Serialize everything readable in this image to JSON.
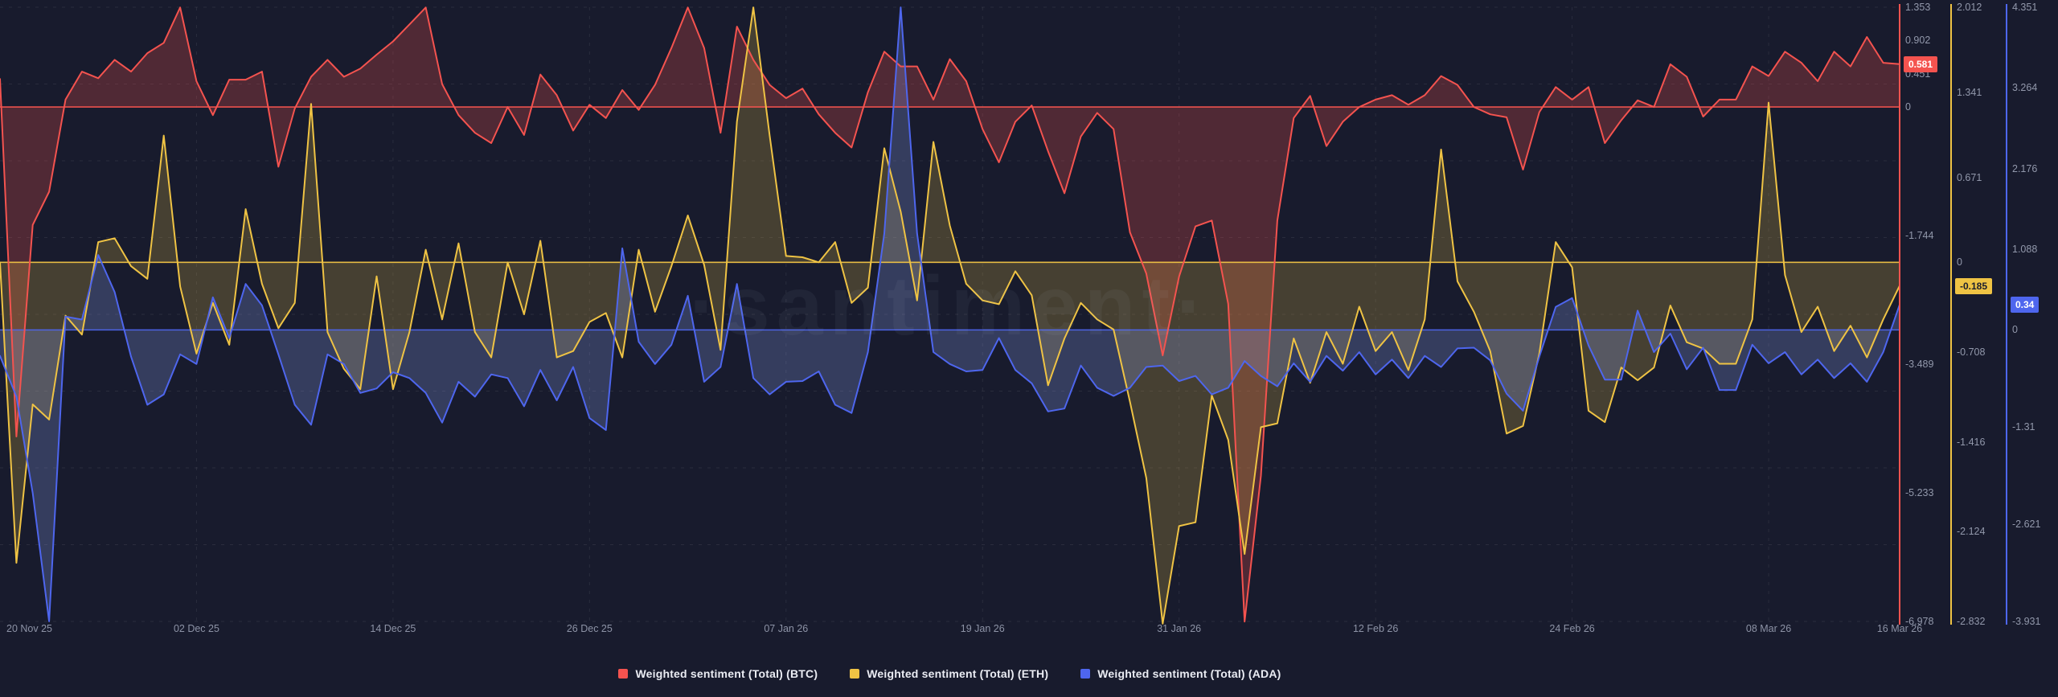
{
  "watermark": {
    "text": "·santiment·"
  },
  "colors": {
    "background": "#181b2d",
    "grid": "rgba(255,255,255,0.08)",
    "axis_text": "#9298ab",
    "date_text": "#8d93a6",
    "legend_text": "#eaecf3"
  },
  "chart_data": {
    "type": "area",
    "title": "",
    "grid": true,
    "legend_position": "bottom-center",
    "n_points": 117,
    "x_range": [
      "20 Nov 25",
      "16 Mar 26"
    ],
    "x_tick_labels": [
      "20 Nov 25",
      "02 Dec 25",
      "14 Dec 25",
      "26 Dec 25",
      "07 Jan 26",
      "19 Jan 26",
      "31 Jan 26",
      "12 Feb 26",
      "24 Feb 26",
      "08 Mar 26",
      "16 Mar 26"
    ],
    "x_tick_days": [
      0,
      12,
      24,
      36,
      48,
      60,
      72,
      84,
      96,
      108,
      116
    ],
    "series": [
      {
        "id": "btc",
        "name": "Weighted sentiment (Total) (BTC)",
        "color": "#f4534f",
        "fill": "rgba(244,83,79,0.26)",
        "label_text_color": "#ffffff",
        "axis_range": [
          -6.978,
          1.353
        ],
        "axis_ticks": [
          "1.353",
          "0.902",
          "0.451",
          "0",
          "-1.744",
          "-3.489",
          "-5.233",
          "-6.978"
        ],
        "current": 0.581,
        "current_label": "0.581",
        "values": [
          0.38,
          -4.47,
          -1.6,
          -1.15,
          0.1,
          0.48,
          0.39,
          0.64,
          0.48,
          0.73,
          0.87,
          1.35,
          0.35,
          -0.11,
          0.37,
          0.37,
          0.48,
          -0.81,
          -0.02,
          0.41,
          0.64,
          0.41,
          0.52,
          0.71,
          0.89,
          1.12,
          1.35,
          0.31,
          -0.11,
          -0.35,
          -0.49,
          0.0,
          -0.38,
          0.44,
          0.16,
          -0.32,
          0.03,
          -0.15,
          0.23,
          -0.04,
          0.3,
          0.8,
          1.35,
          0.8,
          -0.35,
          1.09,
          0.64,
          0.3,
          0.12,
          0.25,
          -0.1,
          -0.35,
          -0.55,
          0.2,
          0.75,
          0.55,
          0.55,
          0.1,
          0.65,
          0.35,
          -0.3,
          -0.75,
          -0.2,
          0.02,
          -0.6,
          -1.17,
          -0.4,
          -0.08,
          -0.3,
          -1.7,
          -2.26,
          -3.37,
          -2.3,
          -1.62,
          -1.54,
          -2.67,
          -6.98,
          -5.0,
          -1.54,
          -0.15,
          0.15,
          -0.53,
          -0.2,
          0.0,
          0.1,
          0.16,
          0.03,
          0.16,
          0.42,
          0.3,
          0.0,
          -0.1,
          -0.14,
          -0.85,
          -0.07,
          0.27,
          0.1,
          0.27,
          -0.49,
          -0.18,
          0.09,
          0.0,
          0.58,
          0.41,
          -0.13,
          0.1,
          0.1,
          0.55,
          0.42,
          0.75,
          0.6,
          0.35,
          0.75,
          0.55,
          0.95,
          0.6,
          0.581
        ]
      },
      {
        "id": "eth",
        "name": "Weighted sentiment (Total) (ETH)",
        "color": "#efc344",
        "fill": "rgba(239,195,68,0.22)",
        "label_text_color": "#1b1e2e",
        "axis_range": [
          -2.832,
          2.012
        ],
        "axis_ticks": [
          "2.012",
          "1.341",
          "0.671",
          "0",
          "-0.708",
          "-1.416",
          "-2.124",
          "-2.832"
        ],
        "current": -0.185,
        "current_label": "-0.185",
        "values": [
          0.0,
          -2.37,
          -1.12,
          -1.24,
          -0.42,
          -0.57,
          0.16,
          0.19,
          -0.03,
          -0.13,
          1.0,
          -0.19,
          -0.72,
          -0.32,
          -0.65,
          0.42,
          -0.17,
          -0.52,
          -0.32,
          1.25,
          -0.55,
          -0.84,
          -1.0,
          -0.11,
          -1.0,
          -0.55,
          0.1,
          -0.45,
          0.15,
          -0.55,
          -0.75,
          0.0,
          -0.41,
          0.17,
          -0.75,
          -0.7,
          -0.47,
          -0.4,
          -0.75,
          0.1,
          -0.39,
          -0.03,
          0.37,
          -0.02,
          -0.69,
          1.11,
          2.01,
          1.0,
          0.05,
          0.04,
          0.0,
          0.16,
          -0.32,
          -0.2,
          0.9,
          0.4,
          -0.3,
          0.95,
          0.29,
          -0.17,
          -0.3,
          -0.33,
          -0.07,
          -0.26,
          -0.97,
          -0.6,
          -0.32,
          -0.45,
          -0.53,
          -1.1,
          -1.7,
          -2.85,
          -2.08,
          -2.05,
          -1.05,
          -1.4,
          -2.3,
          -1.3,
          -1.27,
          -0.6,
          -0.95,
          -0.55,
          -0.8,
          -0.35,
          -0.7,
          -0.55,
          -0.85,
          -0.45,
          0.89,
          -0.15,
          -0.39,
          -0.7,
          -1.35,
          -1.29,
          -0.72,
          0.16,
          -0.04,
          -1.17,
          -1.26,
          -0.83,
          -0.93,
          -0.83,
          -0.34,
          -0.63,
          -0.68,
          -0.8,
          -0.8,
          -0.45,
          1.26,
          -0.1,
          -0.55,
          -0.35,
          -0.7,
          -0.5,
          -0.75,
          -0.45,
          -0.185
        ]
      },
      {
        "id": "ada",
        "name": "Weighted sentiment (Total) (ADA)",
        "color": "#4e66ee",
        "fill": "rgba(140,158,235,0.26)",
        "label_text_color": "#ffffff",
        "axis_range": [
          -3.931,
          4.351
        ],
        "axis_ticks": [
          "4.351",
          "3.264",
          "2.176",
          "1.088",
          "0",
          "-1.31",
          "-2.621",
          "-3.931"
        ],
        "current": 0.34,
        "current_label": "0.34",
        "values": [
          -0.35,
          -0.9,
          -2.2,
          -3.93,
          0.18,
          0.14,
          1.01,
          0.51,
          -0.36,
          -1.01,
          -0.87,
          -0.33,
          -0.46,
          0.44,
          -0.11,
          0.62,
          0.33,
          -0.33,
          -1.01,
          -1.28,
          -0.33,
          -0.46,
          -0.85,
          -0.79,
          -0.57,
          -0.65,
          -0.85,
          -1.25,
          -0.7,
          -0.9,
          -0.6,
          -0.65,
          -1.03,
          -0.54,
          -0.95,
          -0.5,
          -1.19,
          -1.35,
          1.1,
          -0.16,
          -0.46,
          -0.2,
          0.46,
          -0.7,
          -0.5,
          0.62,
          -0.65,
          -0.87,
          -0.7,
          -0.69,
          -0.56,
          -1.01,
          -1.12,
          -0.3,
          1.3,
          4.35,
          1.3,
          -0.3,
          -0.46,
          -0.56,
          -0.54,
          -0.11,
          -0.54,
          -0.72,
          -1.1,
          -1.06,
          -0.48,
          -0.78,
          -0.89,
          -0.78,
          -0.5,
          -0.48,
          -0.69,
          -0.62,
          -0.87,
          -0.78,
          -0.42,
          -0.62,
          -0.76,
          -0.45,
          -0.7,
          -0.35,
          -0.55,
          -0.3,
          -0.6,
          -0.4,
          -0.65,
          -0.35,
          -0.5,
          -0.25,
          -0.24,
          -0.41,
          -0.86,
          -1.09,
          -0.36,
          0.31,
          0.43,
          -0.21,
          -0.67,
          -0.67,
          0.26,
          -0.3,
          -0.05,
          -0.53,
          -0.24,
          -0.81,
          -0.81,
          -0.2,
          -0.45,
          -0.3,
          -0.6,
          -0.4,
          -0.65,
          -0.45,
          -0.7,
          -0.3,
          0.34
        ]
      }
    ]
  }
}
